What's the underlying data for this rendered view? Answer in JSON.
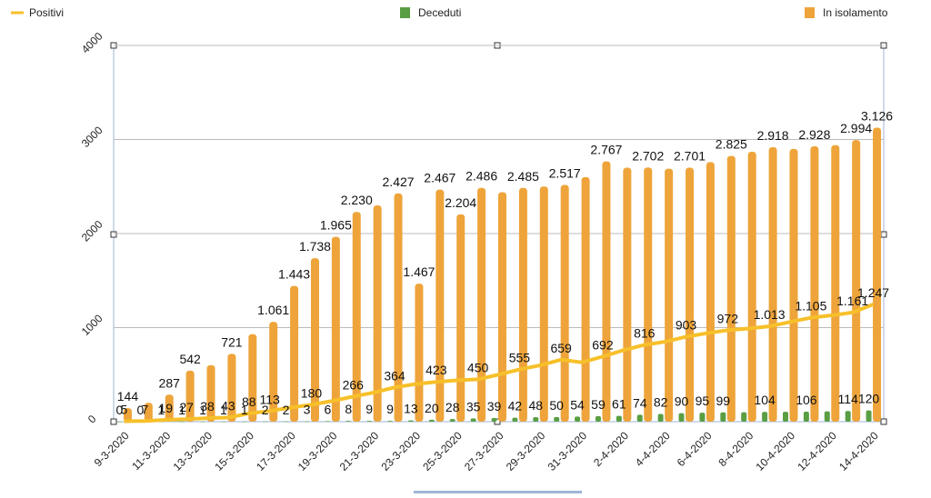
{
  "chart_data": {
    "type": "combo",
    "categories": [
      "9-3-2020",
      null,
      "11-3-2020",
      null,
      "13-3-2020",
      null,
      "15-3-2020",
      null,
      "17-3-2020",
      null,
      "19-3-2020",
      null,
      "21-3-2020",
      null,
      "23-3-2020",
      null,
      "25-3-2020",
      null,
      "27-3-2020",
      null,
      "29-3-2020",
      null,
      "31-3-2020",
      null,
      "2-4-2020",
      null,
      "4-4-2020",
      null,
      "6-4-2020",
      null,
      "8-4-2020",
      null,
      "10-4-2020",
      null,
      "12-4-2020",
      null,
      "14-4-2020"
    ],
    "ylim": [
      0,
      4000
    ],
    "yticks": [
      0,
      1000,
      2000,
      3000,
      4000
    ],
    "grid": true,
    "series": [
      {
        "name": "Positivi",
        "kind": "line",
        "color": "#f7c02a",
        "values": [
          5,
          7,
          19,
          27,
          38,
          43,
          88,
          113,
          150,
          180,
          220,
          266,
          310,
          364,
          400,
          423,
          440,
          450,
          500,
          555,
          600,
          659,
          630,
          692,
          760,
          816,
          850,
          903,
          940,
          972,
          990,
          1013,
          1060,
          1105,
          1130,
          1161,
          1247
        ],
        "value_labels": [
          "5",
          "7",
          "19",
          "27",
          "38",
          "43",
          "88",
          "113",
          null,
          "180",
          null,
          "266",
          null,
          "364",
          null,
          "423",
          null,
          "450",
          null,
          "555",
          null,
          "659",
          null,
          "692",
          null,
          "816",
          null,
          "903",
          null,
          "972",
          null,
          "1.013",
          null,
          "1.105",
          null,
          "1.161",
          "1.247"
        ]
      },
      {
        "name": "Deceduti",
        "kind": "bar",
        "color": "#5a9e44",
        "values": [
          0,
          0,
          1,
          1,
          1,
          1,
          1,
          2,
          2,
          3,
          6,
          8,
          9,
          9,
          13,
          20,
          28,
          35,
          39,
          42,
          48,
          50,
          54,
          59,
          61,
          74,
          82,
          90,
          95,
          99,
          100,
          104,
          105,
          106,
          110,
          114,
          120
        ],
        "value_labels": [
          "0",
          "0",
          "1",
          "1",
          "1",
          "1",
          "1",
          "2",
          "2",
          "3",
          "6",
          "8",
          "9",
          "9",
          "13",
          "20",
          "28",
          "35",
          "39",
          "42",
          "48",
          "50",
          "54",
          "59",
          "61",
          "74",
          "82",
          "90",
          "95",
          "99",
          null,
          "104",
          null,
          "106",
          null,
          "114",
          "120"
        ]
      },
      {
        "name": "In isolamento",
        "kind": "bar",
        "color": "#eea43a",
        "values": [
          144,
          200,
          287,
          542,
          600,
          721,
          930,
          1061,
          1443,
          1738,
          1965,
          2230,
          2300,
          2427,
          1467,
          2467,
          2204,
          2486,
          2440,
          2485,
          2500,
          2517,
          2600,
          2767,
          2700,
          2702,
          2690,
          2701,
          2760,
          2825,
          2870,
          2918,
          2900,
          2928,
          2940,
          2994,
          3126
        ],
        "value_labels": [
          "144",
          null,
          "287",
          "542",
          null,
          "721",
          null,
          "1.061",
          "1.443",
          "1.738",
          "1.965",
          "2.230",
          null,
          "2.427",
          "1.467",
          "2.467",
          "2.204",
          "2.486",
          null,
          "2.485",
          null,
          "2.517",
          null,
          "2.767",
          null,
          "2.702",
          null,
          "2.701",
          null,
          "2.825",
          null,
          "2.918",
          null,
          "2.928",
          null,
          "2.994",
          "3.126"
        ]
      }
    ]
  }
}
